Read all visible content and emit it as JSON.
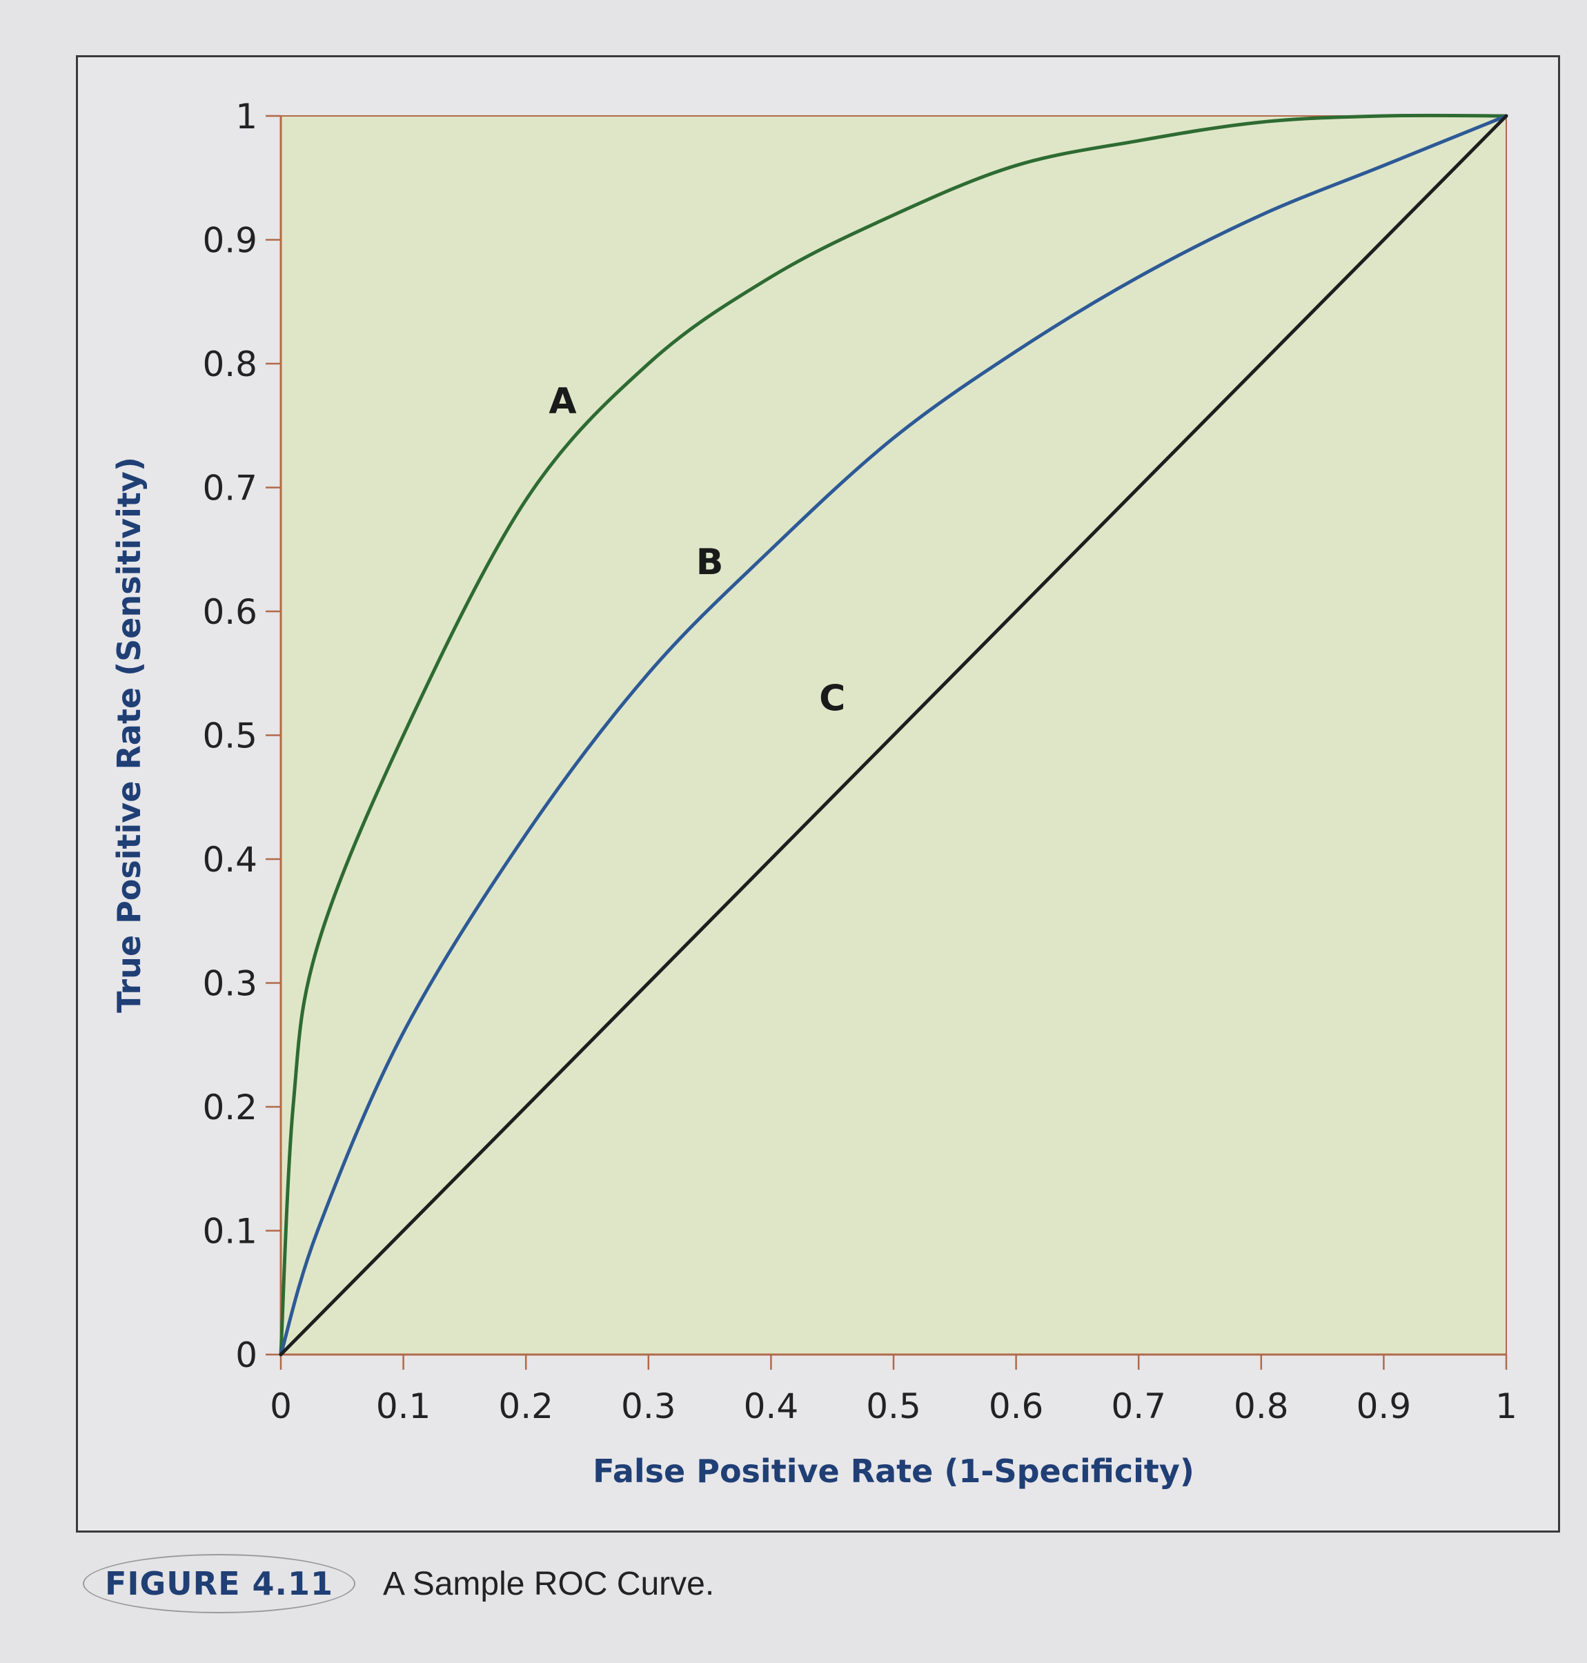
{
  "figure": {
    "number": "FIGURE 4.11",
    "title": "A Sample ROC Curve."
  },
  "colors": {
    "plot_bg": "#dfe6c8",
    "axis": "#b06a4a",
    "curve_a": "#2e6b32",
    "curve_b": "#2d5a96",
    "curve_c": "#1e1e1e",
    "axis_title": "#1f3f75"
  },
  "chart_data": {
    "type": "line",
    "title": "A Sample ROC Curve.",
    "xlabel": "False Positive Rate (1-Specificity)",
    "ylabel": "True Positive Rate (Sensitivity)",
    "xlim": [
      0,
      1
    ],
    "ylim": [
      0,
      1
    ],
    "grid": false,
    "legend": "inline labels (A, B, C)",
    "x_ticks": [
      "0",
      "0.1",
      "0.2",
      "0.3",
      "0.4",
      "0.5",
      "0.6",
      "0.7",
      "0.8",
      "0.9",
      "1"
    ],
    "y_ticks": [
      "0",
      "0.1",
      "0.2",
      "0.3",
      "0.4",
      "0.5",
      "0.6",
      "0.7",
      "0.8",
      "0.9",
      "1"
    ],
    "x": [
      0,
      0.1,
      0.2,
      0.3,
      0.4,
      0.5,
      0.6,
      0.7,
      0.8,
      0.9,
      1
    ],
    "series": [
      {
        "name": "A",
        "values": [
          0,
          0.5,
          0.69,
          0.8,
          0.87,
          0.92,
          0.96,
          0.98,
          0.995,
          1.0,
          1.0
        ]
      },
      {
        "name": "B",
        "values": [
          0,
          0.26,
          0.42,
          0.55,
          0.65,
          0.74,
          0.81,
          0.87,
          0.92,
          0.96,
          1.0
        ]
      },
      {
        "name": "C",
        "values": [
          0,
          0.1,
          0.2,
          0.3,
          0.4,
          0.5,
          0.6,
          0.7,
          0.8,
          0.9,
          1.0
        ]
      }
    ],
    "annotations": [
      {
        "text": "A",
        "x": 0.23,
        "y": 0.76
      },
      {
        "text": "B",
        "x": 0.35,
        "y": 0.63
      },
      {
        "text": "C",
        "x": 0.45,
        "y": 0.52
      }
    ]
  }
}
